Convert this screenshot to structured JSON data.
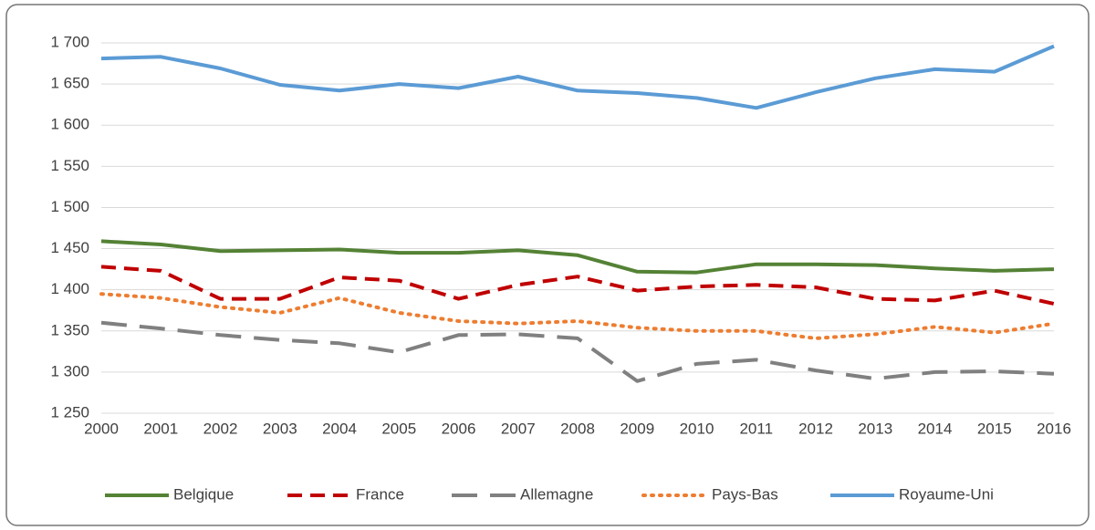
{
  "chart_data": {
    "type": "line",
    "categories": [
      "2000",
      "2001",
      "2002",
      "2003",
      "2004",
      "2005",
      "2006",
      "2007",
      "2008",
      "2009",
      "2010",
      "2011",
      "2012",
      "2013",
      "2014",
      "2015",
      "2016"
    ],
    "series": [
      {
        "name": "Belgique",
        "color": "#548235",
        "dash": "solid",
        "values": [
          1459,
          1455,
          1447,
          1448,
          1449,
          1445,
          1445,
          1448,
          1442,
          1422,
          1421,
          1431,
          1431,
          1430,
          1426,
          1423,
          1425
        ]
      },
      {
        "name": "France",
        "color": "#c00000",
        "dash": "dashed",
        "values": [
          1428,
          1423,
          1389,
          1389,
          1415,
          1411,
          1389,
          1406,
          1416,
          1399,
          1404,
          1406,
          1403,
          1389,
          1387,
          1399,
          1383
        ]
      },
      {
        "name": "Allemagne",
        "color": "#808080",
        "dash": "longdash",
        "values": [
          1360,
          1353,
          1345,
          1339,
          1335,
          1324,
          1345,
          1346,
          1341,
          1289,
          1310,
          1315,
          1302,
          1292,
          1300,
          1301,
          1298
        ]
      },
      {
        "name": "Pays-Bas",
        "color": "#ed7d31",
        "dash": "dotted",
        "values": [
          1395,
          1390,
          1379,
          1372,
          1390,
          1372,
          1362,
          1359,
          1362,
          1354,
          1350,
          1350,
          1341,
          1346,
          1355,
          1348,
          1359
        ]
      },
      {
        "name": "Royaume-Uni",
        "color": "#5b9bd5",
        "dash": "solid",
        "values": [
          1681,
          1683,
          1669,
          1649,
          1642,
          1650,
          1645,
          1659,
          1642,
          1639,
          1633,
          1621,
          1640,
          1657,
          1668,
          1665,
          1696
        ]
      }
    ],
    "ylim": [
      1250,
      1700
    ],
    "yticks": [
      {
        "value": 1250,
        "label": "1 250"
      },
      {
        "value": 1300,
        "label": "1 300"
      },
      {
        "value": 1350,
        "label": "1 350"
      },
      {
        "value": 1400,
        "label": "1 400"
      },
      {
        "value": 1450,
        "label": "1 450"
      },
      {
        "value": 1500,
        "label": "1 500"
      },
      {
        "value": 1550,
        "label": "1 550"
      },
      {
        "value": 1600,
        "label": "1 600"
      },
      {
        "value": 1650,
        "label": "1 650"
      },
      {
        "value": 1700,
        "label": "1 700"
      }
    ],
    "grid": true,
    "legend": "bottom"
  }
}
